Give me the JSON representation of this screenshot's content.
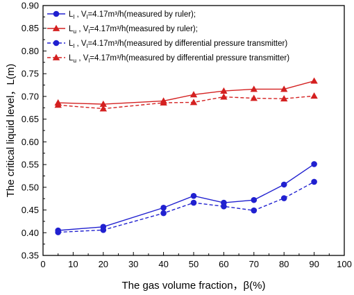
{
  "chart_data": {
    "type": "line",
    "xlabel": "The gas volume fraction，β(%)",
    "ylabel": "The critical liquid level，L(m)",
    "xlim": [
      0,
      100
    ],
    "ylim": [
      0.35,
      0.9
    ],
    "xticks": [
      0,
      10,
      20,
      30,
      40,
      50,
      60,
      70,
      80,
      90,
      100
    ],
    "yticks": [
      0.35,
      0.4,
      0.45,
      0.5,
      0.55,
      0.6,
      0.65,
      0.7,
      0.75,
      0.8,
      0.85,
      0.9
    ],
    "legend_position": "top-left",
    "x": [
      5,
      20,
      40,
      50,
      60,
      70,
      80,
      90
    ],
    "series": [
      {
        "legend_main": "L",
        "legend_sub": "l",
        "legend_rest": " , V",
        "legend_sub2": "l",
        "legend_tail": "=4.17m³/h(measured by ruler);",
        "marker": "circle",
        "line_style": "solid",
        "color": "#2020d0",
        "values": [
          0.405,
          0.413,
          0.455,
          0.481,
          0.466,
          0.472,
          0.506,
          0.551
        ]
      },
      {
        "legend_main": "L",
        "legend_sub": "u",
        "legend_rest": " , V",
        "legend_sub2": "l",
        "legend_tail": "=4.17m³/h(measured by ruler);",
        "marker": "triangle",
        "line_style": "solid",
        "color": "#d42020",
        "values": [
          0.686,
          0.683,
          0.69,
          0.704,
          0.712,
          0.716,
          0.716,
          0.734
        ]
      },
      {
        "legend_main": "L",
        "legend_sub": "l",
        "legend_rest": " , V",
        "legend_sub2": "l",
        "legend_tail": "=4.17m³/h(measured by differential pressure transmitter)",
        "marker": "circle",
        "line_style": "dashed",
        "color": "#2020d0",
        "values": [
          0.401,
          0.406,
          0.443,
          0.466,
          0.458,
          0.449,
          0.476,
          0.512
        ]
      },
      {
        "legend_main": "L",
        "legend_sub": "u",
        "legend_rest": " , V",
        "legend_sub2": "l",
        "legend_tail": "=4.17m³/h(measured by differential pressure transmitter)",
        "marker": "triangle",
        "line_style": "dashed",
        "color": "#d42020",
        "values": [
          0.681,
          0.673,
          0.686,
          0.687,
          0.699,
          0.696,
          0.695,
          0.701
        ]
      }
    ]
  }
}
